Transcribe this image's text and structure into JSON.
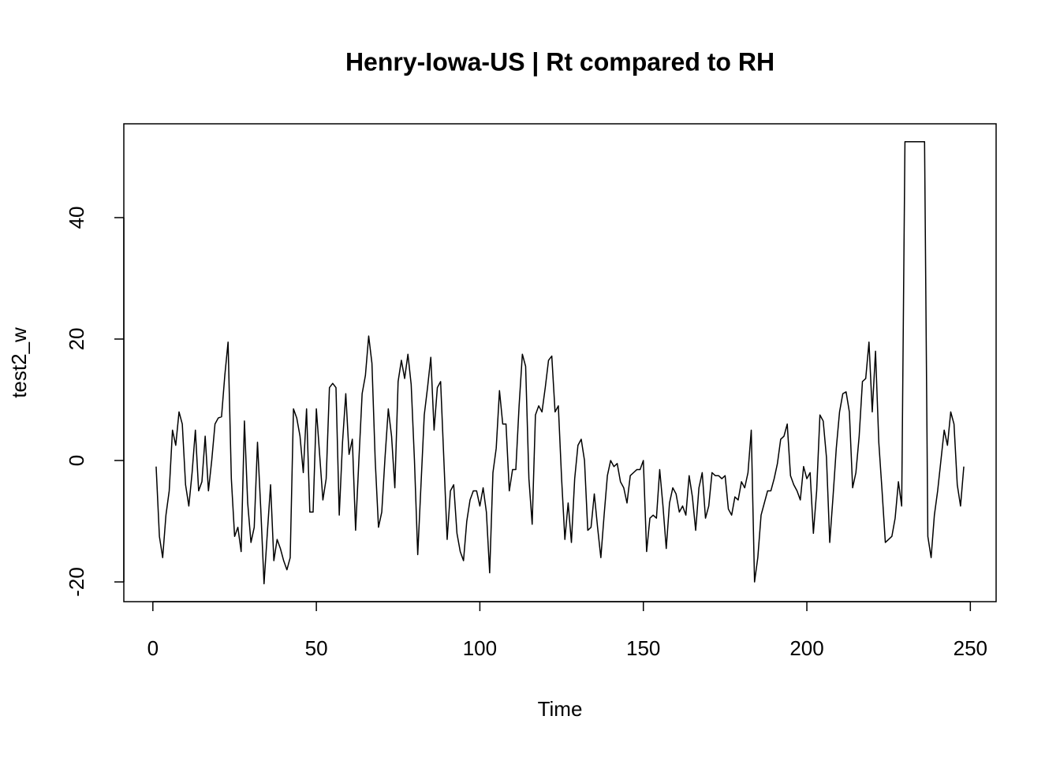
{
  "chart_data": {
    "type": "line",
    "title": "Henry-Iowa-US | Rt compared to RH",
    "x_label": "Time",
    "y_label": "test2_w",
    "x": [
      1,
      2,
      3,
      4,
      5,
      6,
      7,
      8,
      9,
      10,
      11,
      12,
      13,
      14,
      15,
      16,
      17,
      18,
      19,
      20,
      21,
      22,
      23,
      24,
      25,
      26,
      27,
      28,
      29,
      30,
      31,
      32,
      33,
      34,
      35,
      36,
      37,
      38,
      39,
      40,
      41,
      42,
      43,
      44,
      45,
      46,
      47,
      48,
      49,
      50,
      51,
      52,
      53,
      54,
      55,
      56,
      57,
      58,
      59,
      60,
      61,
      62,
      63,
      64,
      65,
      66,
      67,
      68,
      69,
      70,
      71,
      72,
      73,
      74,
      75,
      76,
      77,
      78,
      79,
      80,
      81,
      82,
      83,
      84,
      85,
      86,
      87,
      88,
      89,
      90,
      91,
      92,
      93,
      94,
      95,
      96,
      97,
      98,
      99,
      100,
      101,
      102,
      103,
      104,
      105,
      106,
      107,
      108,
      109,
      110,
      111,
      112,
      113,
      114,
      115,
      116,
      117,
      118,
      119,
      120,
      121,
      122,
      123,
      124,
      125,
      126,
      127,
      128,
      129,
      130,
      131,
      132,
      133,
      134,
      135,
      136,
      137,
      138,
      139,
      140,
      141,
      142,
      143,
      144,
      145,
      146,
      147,
      148,
      149,
      150,
      151,
      152,
      153,
      154,
      155,
      156,
      157,
      158,
      159,
      160,
      161,
      162,
      163,
      164,
      165,
      166,
      167,
      168,
      169,
      170,
      171,
      172,
      173,
      174,
      175,
      176,
      177,
      178,
      179,
      180,
      181,
      182,
      183,
      184,
      185,
      186,
      187,
      188,
      189,
      190,
      191,
      192,
      193,
      194,
      195,
      196,
      197,
      198,
      199,
      200,
      201,
      202,
      203,
      204,
      205,
      206,
      207,
      208,
      209,
      210,
      211,
      212,
      213,
      214,
      215,
      216,
      217,
      218,
      219,
      220,
      221,
      222,
      223,
      224,
      225,
      226,
      227,
      228,
      229,
      230,
      231,
      232,
      233,
      234,
      235,
      236,
      237,
      238,
      239,
      240,
      241,
      242,
      243,
      244,
      245,
      246,
      247,
      248
    ],
    "series": [
      {
        "name": "test2_w",
        "color": "#000000",
        "values": [
          -1,
          -12.5,
          -16,
          -9,
          -5,
          5,
          2.5,
          8,
          6,
          -4,
          -7.5,
          -2,
          5,
          -5,
          -3.5,
          4,
          -5,
          0,
          6,
          7,
          7.2,
          14,
          19.5,
          -3,
          -12.5,
          -11,
          -15,
          6.5,
          -7,
          -13.5,
          -11,
          3,
          -8,
          -20.3,
          -12,
          -4,
          -16.5,
          -13,
          -14.5,
          -16.5,
          -18,
          -16,
          8.5,
          7,
          4,
          -2,
          8.5,
          -8.5,
          -8.5,
          8.5,
          1,
          -6.5,
          -3,
          12,
          12.7,
          12,
          -9,
          3,
          11,
          1,
          3.5,
          -11.5,
          0,
          11,
          14,
          20.5,
          16,
          0,
          -11,
          -8.5,
          0.5,
          8.5,
          4,
          -4.5,
          13,
          16.5,
          13.5,
          17.5,
          12.5,
          0,
          -15.5,
          -4,
          7.5,
          12,
          17,
          5,
          12,
          13,
          0,
          -13,
          -5,
          -4,
          -12,
          -15,
          -16.5,
          -10,
          -6.5,
          -5,
          -5,
          -7.5,
          -4.5,
          -8.5,
          -18.5,
          -2,
          2,
          11.5,
          6,
          6,
          -5,
          -1.5,
          -1.5,
          9,
          17.5,
          15.5,
          -3,
          -10.5,
          7.5,
          9,
          8,
          12,
          16.5,
          17.2,
          8,
          9,
          -3,
          -13,
          -7,
          -13.5,
          -3,
          2.5,
          3.5,
          0,
          -11.5,
          -11,
          -5.5,
          -11,
          -16,
          -9,
          -2.5,
          0,
          -1,
          -0.5,
          -3.5,
          -4.5,
          -7,
          -2.5,
          -2,
          -1.5,
          -1.5,
          0,
          -15,
          -9.5,
          -9,
          -9.5,
          -1.5,
          -7.5,
          -14.5,
          -7,
          -4.5,
          -5.5,
          -8.5,
          -7.5,
          -9,
          -2.5,
          -6,
          -11.5,
          -4.5,
          -2,
          -9.5,
          -7.5,
          -2,
          -2.5,
          -2.5,
          -3,
          -2.5,
          -8,
          -9,
          -6,
          -6.5,
          -3.5,
          -4.5,
          -2,
          5,
          -20,
          -16,
          -9,
          -7,
          -5,
          -5,
          -3,
          -0.5,
          3.5,
          4,
          6,
          -2.5,
          -4,
          -5,
          -6.5,
          -1,
          -3,
          -2,
          -12,
          -5,
          7.5,
          6.5,
          0.5,
          -13.5,
          -6,
          2,
          8,
          11,
          11.3,
          8,
          -4.5,
          -2,
          4,
          13,
          13.5,
          19.5,
          8,
          18,
          3,
          -5,
          -13.5,
          -13,
          -12.5,
          -9.5,
          -3.5,
          -7.5,
          52.5,
          52.5,
          52.5,
          52.5,
          52.5,
          52.5,
          52.5,
          -12.5,
          -16,
          -9,
          -5,
          0,
          5,
          2.5,
          8,
          6,
          -4,
          -7.5,
          -1
        ]
      }
    ],
    "xlim": [
      -8.88,
      257.88
    ],
    "xticks": [
      0,
      50,
      100,
      150,
      200,
      250
    ],
    "ylim": [
      -23.25,
      55.45
    ],
    "yticks": [
      -20,
      0,
      20,
      40
    ]
  }
}
